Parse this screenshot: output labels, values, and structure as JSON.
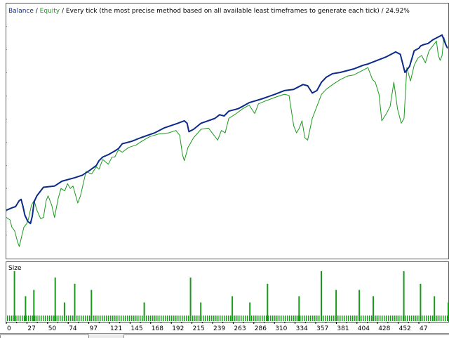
{
  "header": {
    "balance_label": "Balance",
    "sep1": " / ",
    "equity_label": "Equity",
    "sep2": " / ",
    "description": "Every tick (the most precise method based on all available least timeframes to generate each tick)",
    "sep3": " / ",
    "quality": "24.92%"
  },
  "size_panel": {
    "label": "Size"
  },
  "colors": {
    "balance": "#0b2a8a",
    "equity": "#1a9a1a",
    "background": "#ffffff",
    "grid": "#9a9a9a"
  },
  "chart_data": {
    "type": "line",
    "title": "",
    "xlabel": "",
    "ylabel": "",
    "x_ticks": [
      "0",
      "27",
      "50",
      "74",
      "97",
      "121",
      "145",
      "168",
      "192",
      "215",
      "239",
      "263",
      "286",
      "310",
      "334",
      "357",
      "381",
      "404",
      "428",
      "452",
      "47"
    ],
    "xlim": [
      0,
      476
    ],
    "ylim": [
      0,
      100
    ],
    "grid": true,
    "series": [
      {
        "name": "Balance",
        "x": [
          0,
          6,
          10,
          14,
          16,
          18,
          20,
          23,
          26,
          28,
          30,
          33,
          40,
          52,
          60,
          74,
          82,
          90,
          97,
          100,
          104,
          110,
          117,
          121,
          125,
          135,
          145,
          160,
          170,
          185,
          192,
          195,
          197,
          202,
          210,
          225,
          230,
          235,
          240,
          250,
          255,
          262,
          275,
          290,
          300,
          310,
          320,
          325,
          330,
          335,
          340,
          345,
          352,
          360,
          375,
          385,
          390,
          400,
          410,
          420,
          425,
          430,
          435,
          440,
          445,
          447,
          450,
          455,
          460,
          465,
          470,
          474,
          476
        ],
        "y": [
          20.0,
          21.0,
          21.5,
          24.0,
          24.5,
          21.5,
          18.0,
          15.5,
          14.5,
          17.5,
          23.5,
          26.0,
          29.5,
          30.0,
          32.0,
          33.5,
          34.5,
          36.5,
          38.5,
          40.5,
          42.0,
          43.0,
          44.5,
          45.5,
          47.5,
          48.5,
          50.0,
          52.0,
          54.0,
          56.0,
          57.0,
          56.0,
          52.5,
          53.5,
          56.0,
          58.0,
          59.5,
          59.0,
          61.0,
          62.0,
          63.0,
          64.5,
          66.0,
          68.0,
          69.5,
          70.0,
          72.0,
          71.5,
          68.5,
          69.5,
          73.0,
          75.0,
          76.5,
          77.0,
          78.5,
          80.0,
          80.5,
          82.0,
          83.5,
          85.5,
          84.5,
          77.0,
          79.5,
          86.0,
          87.0,
          88.0,
          88.5,
          89.0,
          90.5,
          91.5,
          92.5,
          88.5,
          87.0
        ]
      },
      {
        "name": "Equity",
        "x": [
          0,
          4,
          6,
          9,
          12,
          14,
          17,
          19,
          22,
          24,
          27,
          30,
          33,
          37,
          40,
          43,
          45,
          49,
          52,
          56,
          59,
          63,
          66,
          69,
          72,
          77,
          80,
          86,
          92,
          97,
          100,
          104,
          110,
          114,
          117,
          121,
          125,
          132,
          140,
          148,
          155,
          164,
          175,
          183,
          187,
          190,
          192,
          196,
          202,
          210,
          218,
          224,
          228,
          232,
          236,
          240,
          248,
          255,
          262,
          268,
          272,
          278,
          285,
          292,
          300,
          305,
          310,
          313,
          316,
          319,
          322,
          325,
          330,
          335,
          340,
          345,
          352,
          360,
          368,
          375,
          380,
          385,
          390,
          395,
          398,
          402,
          405,
          410,
          414,
          418,
          422,
          426,
          429,
          432,
          436,
          440,
          444,
          448,
          452,
          456,
          460,
          464,
          466,
          468,
          470,
          472,
          474,
          476
        ],
        "y": [
          17.0,
          16.0,
          13.0,
          11.5,
          7.0,
          5.0,
          10.0,
          13.0,
          14.5,
          16.5,
          22.0,
          24.0,
          20.0,
          16.5,
          17.0,
          24.0,
          26.0,
          22.0,
          17.0,
          25.0,
          29.0,
          28.0,
          31.0,
          29.0,
          30.0,
          23.0,
          26.0,
          36.0,
          35.0,
          38.0,
          37.0,
          41.0,
          39.0,
          42.0,
          42.0,
          45.0,
          44.0,
          46.0,
          47.0,
          49.0,
          50.5,
          51.5,
          52.0,
          53.0,
          51.0,
          43.0,
          40.5,
          46.0,
          50.0,
          53.5,
          54.0,
          51.0,
          49.0,
          53.0,
          52.0,
          58.0,
          60.0,
          62.0,
          63.5,
          60.0,
          64.0,
          65.0,
          66.0,
          67.0,
          68.0,
          67.5,
          55.0,
          52.0,
          54.0,
          57.0,
          50.0,
          49.0,
          58.0,
          63.0,
          68.0,
          70.0,
          72.0,
          74.0,
          75.5,
          76.0,
          77.0,
          78.0,
          79.0,
          74.0,
          73.0,
          68.0,
          57.0,
          60.0,
          63.0,
          73.0,
          62.0,
          56.0,
          58.0,
          79.0,
          73.5,
          80.0,
          83.0,
          84.0,
          81.0,
          86.0,
          88.0,
          90.0,
          84.0,
          82.0,
          84.0,
          91.5,
          89.0,
          87.0
        ]
      }
    ],
    "size_series": {
      "name": "Size",
      "values": [
        1,
        1,
        1,
        1,
        1,
        1,
        1,
        1,
        8,
        2,
        1,
        1,
        1,
        1,
        1,
        1,
        1,
        1,
        1,
        1,
        1,
        1,
        1,
        1,
        1,
        1,
        1,
        1,
        1,
        1,
        1,
        1,
        1,
        1,
        1,
        1,
        1,
        1,
        1,
        1,
        1,
        1,
        1,
        1,
        1,
        1,
        1,
        1,
        1,
        1,
        1,
        1,
        1,
        1,
        1,
        1,
        1,
        1,
        1,
        1,
        1,
        1,
        1,
        1,
        1,
        1,
        1,
        1,
        1,
        1,
        1,
        1,
        1,
        1,
        1,
        1,
        1,
        1,
        1,
        1,
        1,
        1,
        1,
        1,
        1,
        1,
        1,
        1,
        1,
        1,
        1,
        1,
        1,
        1,
        1,
        1,
        1,
        1,
        1,
        1,
        1,
        1,
        1,
        1,
        1,
        1,
        1,
        1,
        1,
        1,
        1,
        1,
        1,
        1,
        1,
        1,
        1,
        1,
        1,
        1,
        1,
        1,
        1,
        1,
        1,
        1,
        1,
        1,
        1,
        1,
        1,
        1,
        1,
        1,
        1,
        1,
        1,
        1,
        1,
        1,
        1,
        1,
        1,
        1,
        1,
        1,
        1,
        1,
        1,
        1,
        1,
        1,
        1,
        1,
        1,
        1,
        1,
        1,
        1,
        1,
        1,
        1,
        1,
        1,
        1,
        1,
        1,
        1,
        1,
        1,
        1,
        1,
        1,
        1,
        1,
        1,
        1,
        1,
        1,
        1,
        1,
        1,
        1,
        1,
        1,
        1,
        1,
        1,
        1,
        1,
        1,
        1,
        1,
        1,
        1,
        1,
        1,
        1,
        1,
        1,
        1,
        1,
        1,
        1,
        1,
        1,
        1,
        1,
        1,
        1,
        1,
        1,
        1,
        1,
        1,
        1,
        1,
        1,
        1,
        1,
        1,
        1,
        1,
        1,
        1,
        1,
        1,
        1,
        1,
        1,
        1,
        1,
        1,
        1,
        1,
        1,
        1,
        1,
        1,
        1,
        1,
        1,
        1,
        1,
        1,
        1,
        1,
        1,
        1,
        1,
        1,
        1,
        1,
        1,
        1,
        1,
        1,
        1,
        1,
        1,
        1,
        1,
        1,
        1,
        1,
        1,
        1,
        1,
        1,
        1,
        1,
        1,
        1,
        1,
        1,
        1,
        1,
        1,
        1,
        1,
        1,
        1,
        1,
        1,
        1,
        1,
        1,
        1,
        1,
        1,
        1,
        1,
        1,
        1,
        1,
        1,
        1,
        1,
        1,
        1,
        1,
        1,
        1,
        1,
        1,
        1,
        1,
        1,
        1,
        1,
        1,
        1,
        1,
        1,
        1,
        1,
        1,
        1,
        1,
        1,
        1,
        1,
        1,
        1,
        1,
        1,
        1,
        1,
        1,
        1,
        1,
        1,
        1,
        1,
        1,
        1,
        1,
        1,
        1,
        1,
        1,
        1,
        1,
        1,
        1,
        1,
        1,
        1,
        1,
        1,
        1,
        1,
        1,
        1,
        1,
        1,
        1,
        1,
        1,
        1,
        1,
        1,
        1,
        1,
        1,
        1,
        1,
        1,
        1,
        1,
        1,
        1,
        1,
        1,
        1,
        1,
        1,
        1,
        1,
        1,
        1,
        1,
        1,
        1,
        1,
        1,
        1,
        1,
        1,
        1,
        1,
        1,
        1,
        1,
        1,
        1,
        1,
        1,
        1,
        1,
        1,
        1,
        1,
        1,
        1,
        1,
        1,
        1,
        1,
        1,
        1,
        1,
        1,
        1,
        1,
        1,
        1,
        1,
        1,
        1,
        1,
        1,
        1,
        1,
        1,
        1,
        1,
        1,
        1,
        1,
        1,
        1,
        1,
        1,
        1,
        1,
        1,
        1,
        1,
        1,
        1,
        1,
        1,
        1,
        1,
        1,
        1,
        1,
        1,
        1,
        1,
        1,
        1,
        1,
        1,
        1,
        1,
        1,
        1,
        1,
        1,
        1,
        1,
        1,
        1,
        1,
        1,
        1,
        1,
        1,
        1,
        1,
        1,
        1,
        1,
        1,
        1,
        1,
        1,
        1,
        1,
        1,
        1,
        1,
        1,
        1,
        1
      ],
      "spikes": [
        [
          8,
          8
        ],
        [
          20,
          4
        ],
        [
          29,
          5
        ],
        [
          52,
          7
        ],
        [
          62,
          3
        ],
        [
          73,
          6
        ],
        [
          91,
          5
        ],
        [
          148,
          3
        ],
        [
          198,
          7
        ],
        [
          209,
          3
        ],
        [
          243,
          4
        ],
        [
          262,
          3
        ],
        [
          281,
          6
        ],
        [
          315,
          4
        ],
        [
          339,
          8
        ],
        [
          355,
          5
        ],
        [
          380,
          5
        ],
        [
          395,
          4
        ],
        [
          428,
          8
        ],
        [
          446,
          6
        ],
        [
          461,
          4
        ],
        [
          476,
          3
        ]
      ]
    }
  }
}
